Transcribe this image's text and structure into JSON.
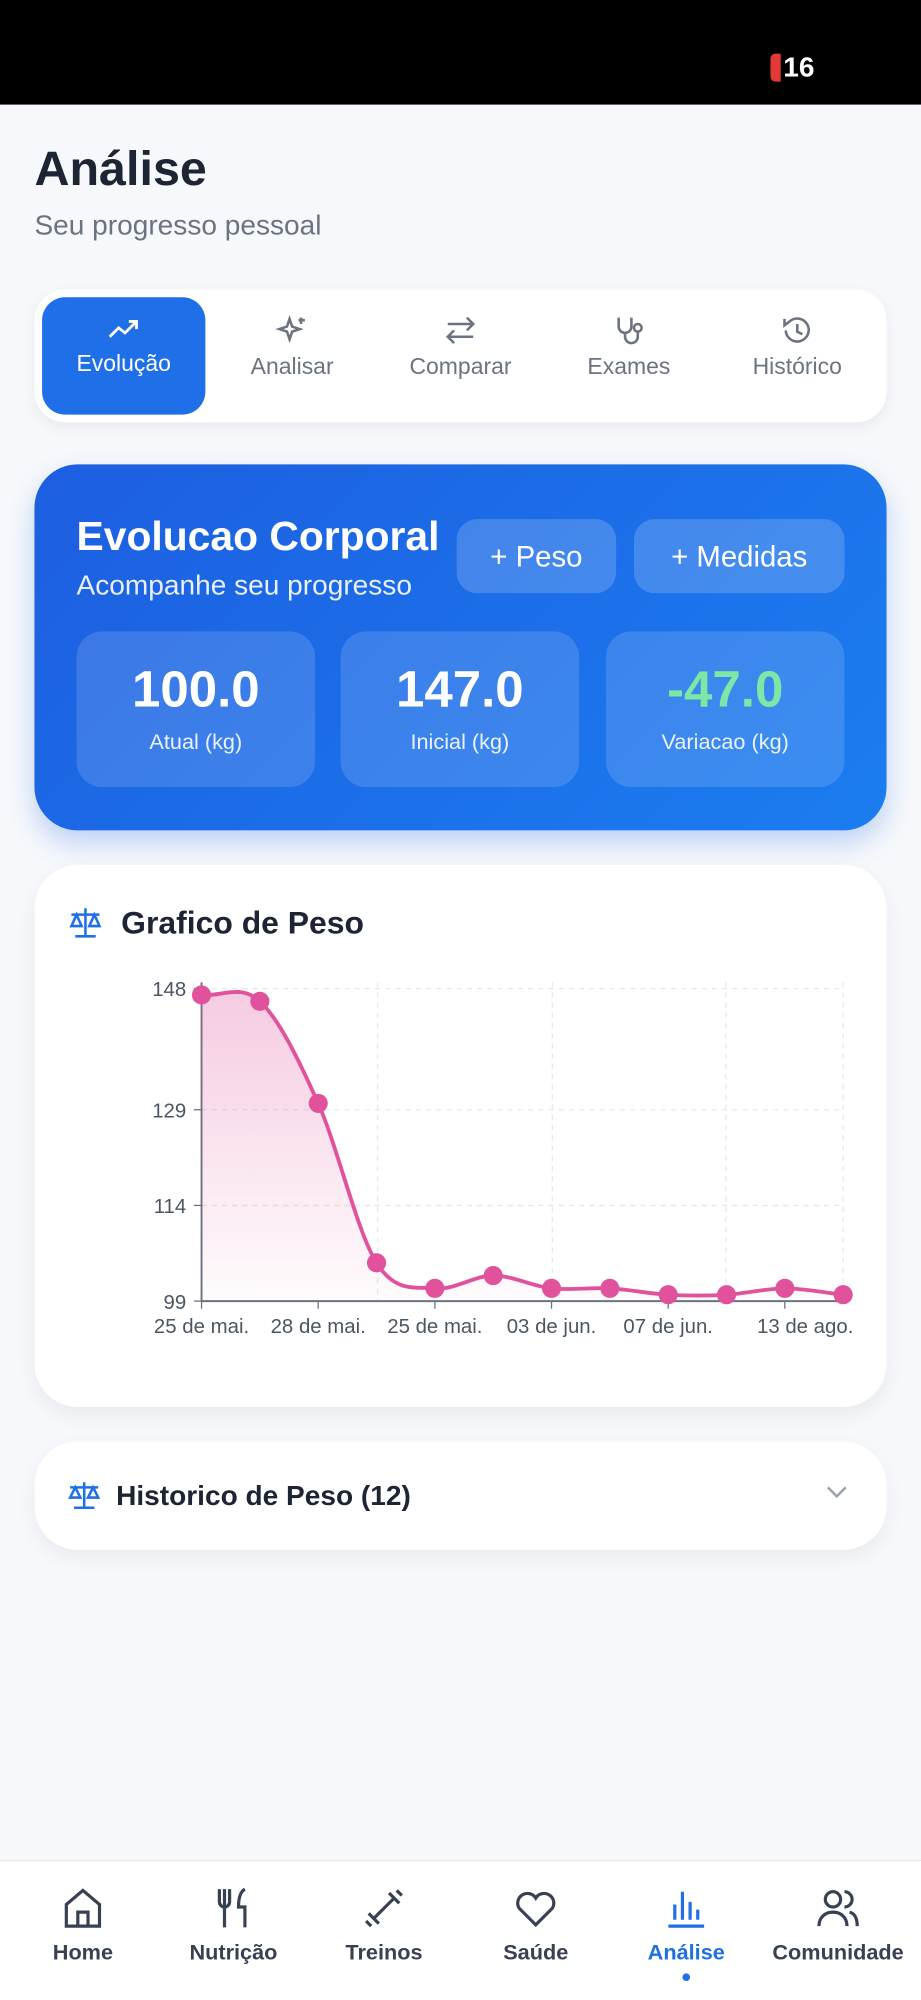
{
  "status_bar": {
    "time": "16"
  },
  "header": {
    "title": "Análise",
    "subtitle": "Seu progresso pessoal"
  },
  "tabs": [
    "Evolução",
    "Analisar",
    "Comparar",
    "Exames",
    "Histórico"
  ],
  "summary": {
    "title": "Evolucao Corporal",
    "subtitle": "Acompanhe seu progresso",
    "buttons": [
      "+ Peso",
      "+ Medidas"
    ],
    "stats": [
      {
        "value": "100.0",
        "label": "Atual (kg)"
      },
      {
        "value": "147.0",
        "label": "Inicial (kg)"
      },
      {
        "value": "-47.0",
        "label": "Variacao (kg)"
      }
    ]
  },
  "chart_data": {
    "type": "line",
    "title": "Grafico de Peso",
    "categories": [
      "25 de mai.",
      null,
      "28 de mai.",
      null,
      "25 de mai.",
      null,
      "03 de jun.",
      null,
      "07 de jun.",
      null,
      "13 de ago.",
      null
    ],
    "series": [
      {
        "name": "Peso",
        "color": "#e0529c",
        "values": [
          147,
          146,
          130,
          105,
          101,
          103,
          101,
          101,
          100,
          100,
          101,
          100
        ]
      }
    ],
    "ylim": [
      99,
      148
    ],
    "yticks": [
      99,
      114,
      129,
      148
    ],
    "grid": true
  },
  "history": {
    "title": "Historico de Peso (12)"
  },
  "nav": [
    "Home",
    "Nutrição",
    "Treinos",
    "Saúde",
    "Análise",
    "Comunidade"
  ]
}
